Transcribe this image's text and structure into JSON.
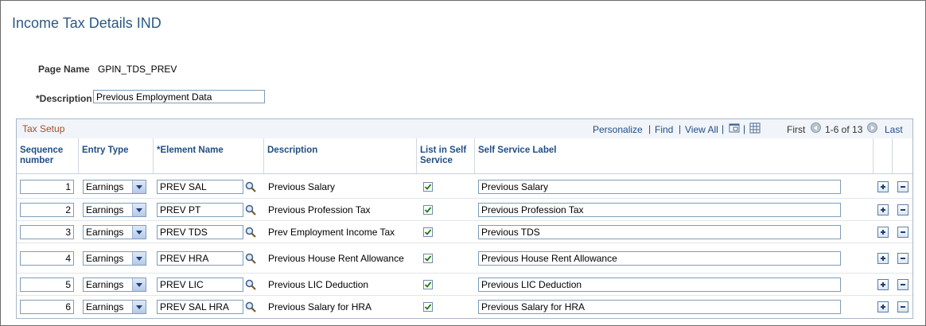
{
  "page": {
    "title": "Income Tax Details IND",
    "page_name_label": "Page Name",
    "page_name_value": "GPIN_TDS_PREV",
    "description_label": "*Description",
    "description_value": "Previous Employment Data"
  },
  "grid": {
    "title": "Tax Setup",
    "personalize": "Personalize",
    "find": "Find",
    "view_all": "View All",
    "sep": "|",
    "first": "First",
    "range": "1-6 of 13",
    "last": "Last",
    "zoom_icon": "zoom-icon",
    "download_icon": "download-icon",
    "columns": {
      "seq": "Sequence number",
      "entry_type": "Entry Type",
      "element_name": "*Element Name",
      "description": "Description",
      "list_self_service": "List in Self Service",
      "self_service_label": "Self Service Label"
    },
    "rows": [
      {
        "seq": "1",
        "entry_type": "Earnings",
        "element": "PREV SAL",
        "description": "Previous Salary",
        "listed": true,
        "label": "Previous Salary"
      },
      {
        "seq": "2",
        "entry_type": "Earnings",
        "element": "PREV PT",
        "description": "Previous Profession Tax",
        "listed": true,
        "label": "Previous Profession Tax"
      },
      {
        "seq": "3",
        "entry_type": "Earnings",
        "element": "PREV TDS",
        "description": "Prev Employment Income Tax",
        "listed": true,
        "label": "Previous TDS"
      },
      {
        "seq": "4",
        "entry_type": "Earnings",
        "element": "PREV HRA",
        "description": "Previous House Rent Allowance",
        "listed": true,
        "label": "Previous House Rent Allowance"
      },
      {
        "seq": "5",
        "entry_type": "Earnings",
        "element": "PREV LIC",
        "description": "Previous LIC Deduction",
        "listed": true,
        "label": "Previous LIC Deduction"
      },
      {
        "seq": "6",
        "entry_type": "Earnings",
        "element": "PREV SAL HRA",
        "description": "Previous Salary for HRA",
        "listed": true,
        "label": "Previous Salary for HRA"
      }
    ]
  }
}
